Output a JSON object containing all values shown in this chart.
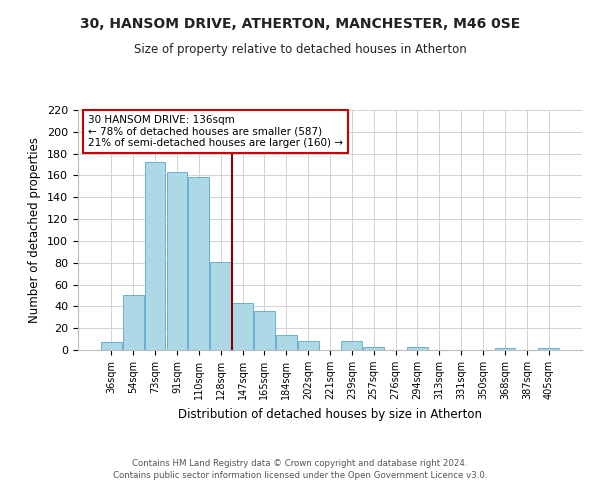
{
  "title1": "30, HANSOM DRIVE, ATHERTON, MANCHESTER, M46 0SE",
  "title2": "Size of property relative to detached houses in Atherton",
  "xlabel": "Distribution of detached houses by size in Atherton",
  "ylabel": "Number of detached properties",
  "bar_labels": [
    "36sqm",
    "54sqm",
    "73sqm",
    "91sqm",
    "110sqm",
    "128sqm",
    "147sqm",
    "165sqm",
    "184sqm",
    "202sqm",
    "221sqm",
    "239sqm",
    "257sqm",
    "276sqm",
    "294sqm",
    "313sqm",
    "331sqm",
    "350sqm",
    "368sqm",
    "387sqm",
    "405sqm"
  ],
  "bar_values": [
    7,
    50,
    172,
    163,
    159,
    81,
    43,
    36,
    14,
    8,
    0,
    8,
    3,
    0,
    3,
    0,
    0,
    0,
    2,
    0,
    2
  ],
  "bar_color": "#add8e6",
  "bar_edge_color": "#6aafd6",
  "vline_x": 5.5,
  "vline_color": "#8b0000",
  "annotation_title": "30 HANSOM DRIVE: 136sqm",
  "annotation_line1": "← 78% of detached houses are smaller (587)",
  "annotation_line2": "21% of semi-detached houses are larger (160) →",
  "annotation_box_color": "#cc0000",
  "ylim": [
    0,
    220
  ],
  "yticks": [
    0,
    20,
    40,
    60,
    80,
    100,
    120,
    140,
    160,
    180,
    200,
    220
  ],
  "footer1": "Contains HM Land Registry data © Crown copyright and database right 2024.",
  "footer2": "Contains public sector information licensed under the Open Government Licence v3.0.",
  "background_color": "#ffffff",
  "grid_color": "#cccccc"
}
